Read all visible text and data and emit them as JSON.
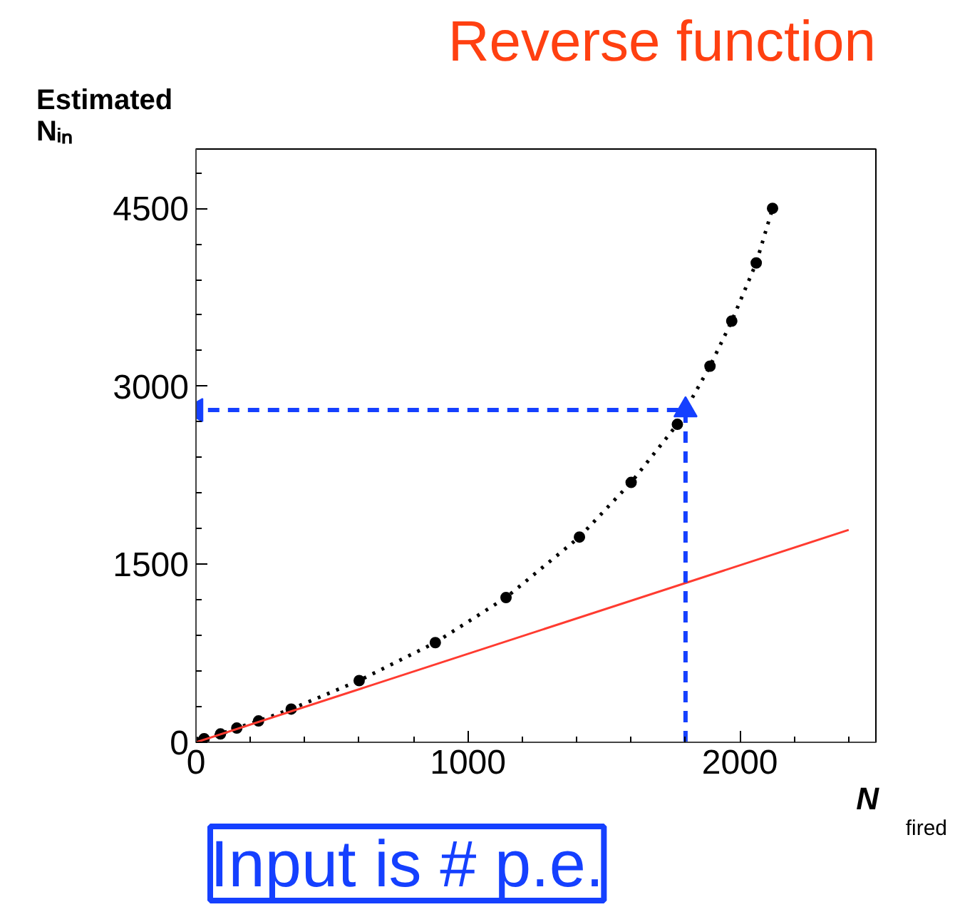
{
  "chart_data": {
    "type": "line",
    "title": "Reverse function",
    "xlabel": "N$_{fired}$",
    "ylabel": "Estimated Nᵢₙ",
    "xlim": [
      0,
      2500
    ],
    "ylim": [
      0,
      5000
    ],
    "xticks": [
      0,
      1000,
      2000
    ],
    "yticks": [
      0,
      1500,
      3000,
      4500
    ],
    "grid": false,
    "series": [
      {
        "color": "#000000",
        "marker": "circle",
        "line_style": "dotted",
        "x": [
          0,
          30,
          90,
          150,
          230,
          350,
          600,
          880,
          1140,
          1410,
          1600,
          1770,
          1890,
          1970,
          2060,
          2120
        ],
        "values": [
          0,
          30,
          70,
          120,
          180,
          280,
          520,
          840,
          1220,
          1730,
          2190,
          2680,
          3170,
          3550,
          4040,
          4500
        ]
      },
      {
        "color": "#ff3b30",
        "marker": "none",
        "line_style": "solid",
        "x": [
          0,
          2400
        ],
        "values": [
          0,
          1790
        ]
      },
      {
        "color": "#1540ff",
        "marker": "triangle",
        "line_style": "dashed",
        "x": [
          1800,
          1800,
          0
        ],
        "values": [
          0,
          2800,
          2800
        ]
      }
    ],
    "annotations": [
      "Input is # p.e."
    ]
  }
}
